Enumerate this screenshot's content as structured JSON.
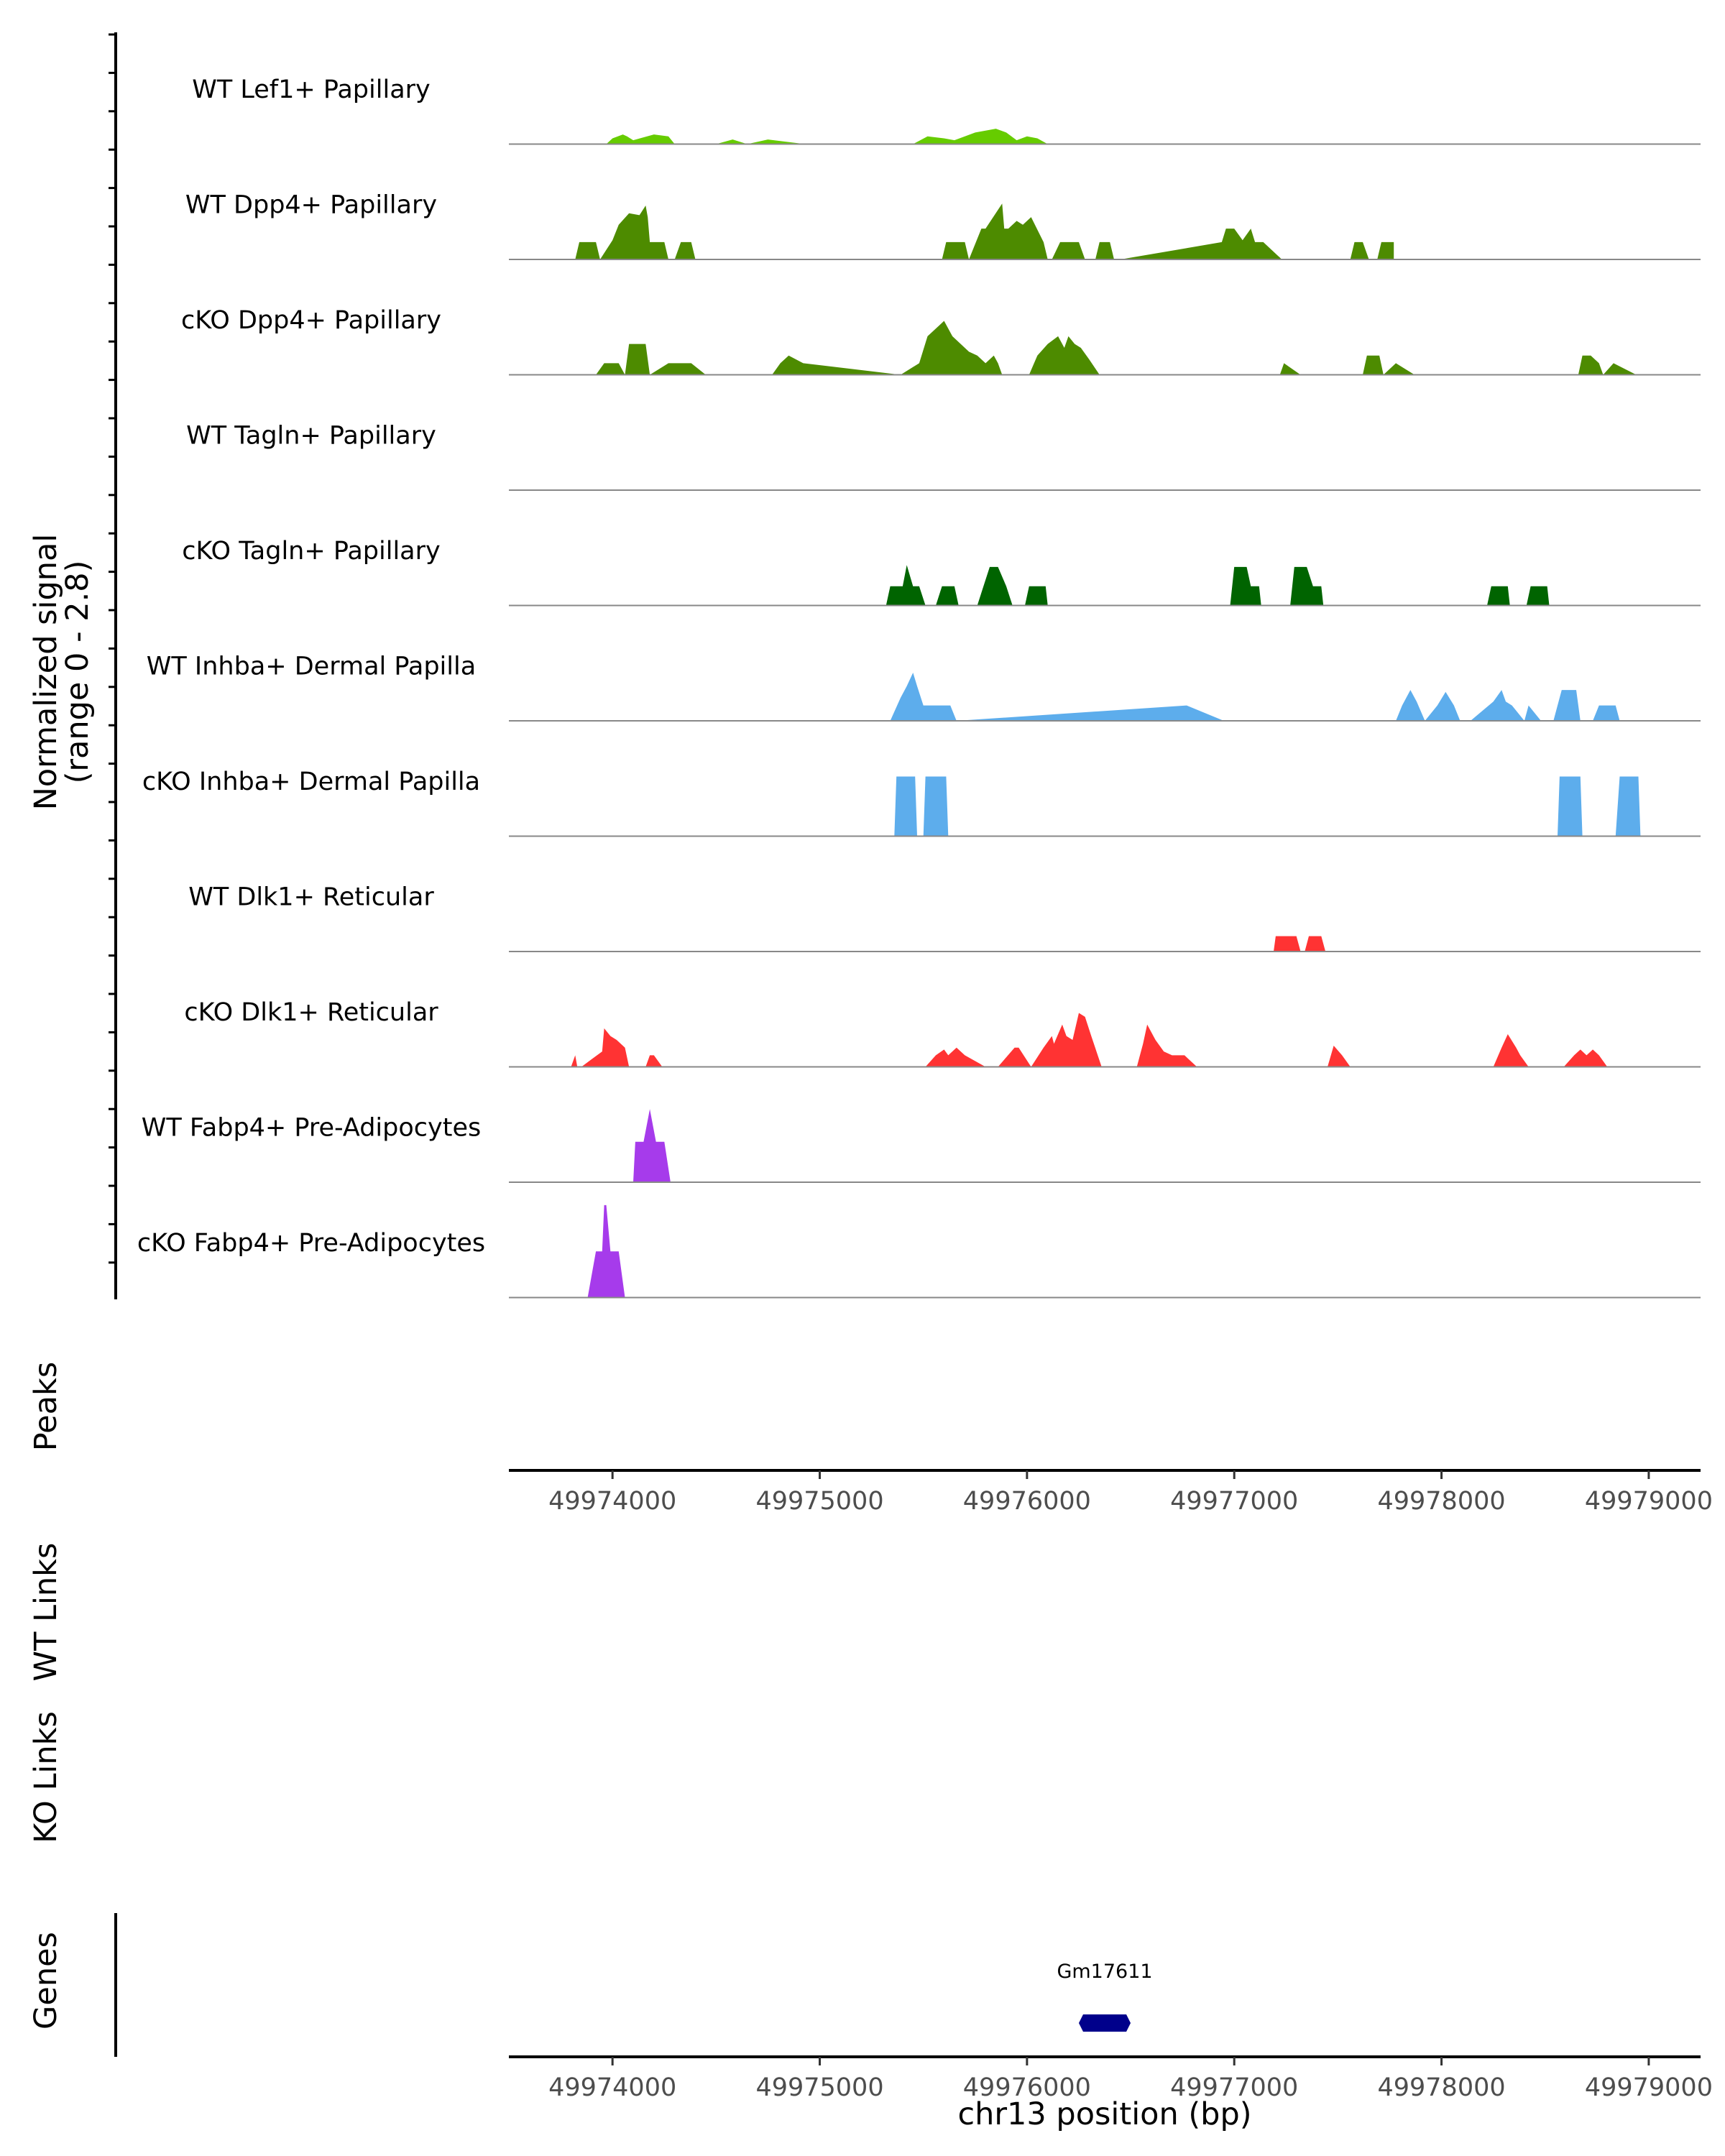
{
  "chart_data": {
    "type": "area",
    "title": "",
    "xlabel": "chr13 position (bp)",
    "ylabel_line1": "Normalized signal",
    "ylabel_line2": "(range 0 - 2.8)",
    "xlim": [
      49973500,
      49979250
    ],
    "ylim": [
      0,
      2.8
    ],
    "x_ticks": [
      49974000,
      49975000,
      49976000,
      49977000,
      49978000,
      49979000
    ],
    "x_tick_labels": [
      "49974000",
      "49975000",
      "49976000",
      "49977000",
      "49978000",
      "49979000"
    ],
    "section_labels": {
      "peaks": "Peaks",
      "wt_links": "WT Links",
      "ko_links": "KO Links",
      "genes": "Genes"
    },
    "tracks": [
      {
        "name": "WT Lef1+ Papillary",
        "color": "#66CC00",
        "x": [
          49973970,
          49974000,
          49974050,
          49974070,
          49974100,
          49974200,
          49974270,
          49974300,
          49974500,
          49974580,
          49974650,
          49974750,
          49974930,
          49975050,
          49975450,
          49975520,
          49975600,
          49975650,
          49975700,
          49975750,
          49975800,
          49975850,
          49975900,
          49975950,
          49976000,
          49976050,
          49976100
        ],
        "y": [
          0,
          0.15,
          0.25,
          0.2,
          0.1,
          0.25,
          0.2,
          0,
          0,
          0.12,
          0,
          0.12,
          0,
          0,
          0,
          0.2,
          0.15,
          0.1,
          0.2,
          0.3,
          0.35,
          0.4,
          0.3,
          0.1,
          0.2,
          0.15,
          0
        ]
      },
      {
        "name": "WT Dpp4+ Papillary",
        "color": "#4D8B00",
        "x": [
          49973820,
          49973840,
          49973920,
          49973940,
          49974000,
          49974030,
          49974080,
          49974130,
          49974160,
          49974170,
          49974180,
          49974250,
          49974270,
          49974300,
          49974330,
          49974380,
          49974400,
          49975590,
          49975610,
          49975700,
          49975720,
          49975780,
          49975800,
          49975880,
          49975890,
          49975910,
          49975950,
          49975980,
          49976020,
          49976080,
          49976100,
          49976120,
          49976160,
          49976250,
          49976280,
          49976330,
          49976350,
          49976400,
          49976420,
          49976450,
          49976940,
          49976960,
          49977000,
          49977040,
          49977080,
          49977100,
          49977140,
          49977230,
          49977560,
          49977580,
          49977620,
          49977650,
          49977690,
          49977710,
          49977770
        ],
        "y": [
          0,
          0.45,
          0.45,
          0,
          0.5,
          0.9,
          1.2,
          1.15,
          1.4,
          1.1,
          0.45,
          0.45,
          0,
          0,
          0.45,
          0.45,
          0,
          0,
          0.45,
          0.45,
          0,
          0.8,
          0.8,
          1.45,
          0.8,
          0.8,
          1.0,
          0.9,
          1.1,
          0.45,
          0,
          0,
          0.45,
          0.45,
          0,
          0,
          0.45,
          0.45,
          0,
          0,
          0.45,
          0.8,
          0.8,
          0.5,
          0.8,
          0.45,
          0.45,
          0,
          0,
          0.45,
          0.45,
          0,
          0,
          0.45,
          0.45
        ]
      },
      {
        "name": "cKO Dpp4+ Papillary",
        "color": "#4D8B00",
        "x": [
          49973920,
          49973960,
          49974030,
          49974060,
          49974080,
          49974160,
          49974180,
          49974270,
          49974290,
          49974330,
          49974380,
          49974450,
          49974770,
          49974810,
          49974850,
          49974920,
          49975390,
          49975480,
          49975520,
          49975580,
          49975600,
          49975640,
          49975680,
          49975720,
          49975760,
          49975800,
          49975840,
          49975860,
          49975880,
          49976010,
          49976050,
          49976100,
          49976150,
          49976180,
          49976200,
          49976230,
          49976260,
          49976300,
          49976350,
          49977220,
          49977240,
          49977320,
          49977620,
          49977640,
          49977700,
          49977720,
          49977780,
          49977870,
          49978660,
          49978680,
          49978720,
          49978760,
          49978780,
          49978830,
          49978940
        ],
        "y": [
          0,
          0.3,
          0.3,
          0,
          0.8,
          0.8,
          0,
          0.3,
          0.3,
          0.3,
          0.3,
          0,
          0,
          0.3,
          0.5,
          0.3,
          0,
          0.3,
          1.0,
          1.3,
          1.4,
          1.0,
          0.8,
          0.6,
          0.5,
          0.3,
          0.5,
          0.3,
          0,
          0,
          0.5,
          0.8,
          1.0,
          0.7,
          1.0,
          0.8,
          0.7,
          0.4,
          0,
          0,
          0.3,
          0,
          0,
          0.5,
          0.5,
          0,
          0.3,
          0,
          0,
          0.5,
          0.5,
          0.3,
          0,
          0.3,
          0
        ]
      },
      {
        "name": "WT Tagln+ Papillary",
        "color": "#2E7D00",
        "x": [],
        "y": []
      },
      {
        "name": "cKO Tagln+ Papillary",
        "color": "#006400",
        "x": [
          49975320,
          49975340,
          49975400,
          49975420,
          49975450,
          49975480,
          49975510,
          49975560,
          49975590,
          49975650,
          49975670,
          49975760,
          49975790,
          49975820,
          49975860,
          49975900,
          49975930,
          49975990,
          49976010,
          49976090,
          49976100,
          49976980,
          49977000,
          49977060,
          49977080,
          49977120,
          49977130,
          49977270,
          49977290,
          49977350,
          49977380,
          49977420,
          49977430,
          49978220,
          49978240,
          49978320,
          49978330,
          49978410,
          49978430,
          49978510,
          49978520
        ],
        "y": [
          0,
          0.5,
          0.5,
          1.05,
          0.5,
          0.5,
          0,
          0,
          0.5,
          0.5,
          0,
          0,
          0.5,
          1.0,
          1.0,
          0.5,
          0,
          0,
          0.5,
          0.5,
          0,
          0,
          1.0,
          1.0,
          0.5,
          0.5,
          0,
          0,
          1.0,
          1.0,
          0.5,
          0.5,
          0,
          0,
          0.5,
          0.5,
          0,
          0,
          0.5,
          0.5,
          0
        ]
      },
      {
        "name": "WT Inhba+ Dermal Papilla",
        "color": "#5DADEC",
        "x": [
          49975340,
          49975390,
          49975420,
          49975450,
          49975470,
          49975500,
          49975630,
          49975660,
          49976770,
          49976950,
          49977780,
          49977810,
          49977850,
          49977880,
          49977920,
          49977980,
          49978020,
          49978060,
          49978090,
          49978140,
          49978250,
          49978290,
          49978310,
          49978340,
          49978400,
          49978420,
          49978480,
          49978540,
          49978580,
          49978650,
          49978670,
          49978730,
          49978760,
          49978840,
          49978860
        ],
        "y": [
          0,
          0.6,
          0.9,
          1.25,
          0.9,
          0.4,
          0.4,
          0,
          0.4,
          0,
          0,
          0.4,
          0.8,
          0.5,
          0,
          0.4,
          0.75,
          0.4,
          0,
          0,
          0.5,
          0.8,
          0.5,
          0.4,
          0,
          0.4,
          0,
          0,
          0.8,
          0.8,
          0,
          0,
          0.4,
          0.4,
          0
        ]
      },
      {
        "name": "cKO Inhba+ Dermal Papilla",
        "color": "#5DADEC",
        "x": [
          49975360,
          49975370,
          49975460,
          49975470,
          49975500,
          49975510,
          49975610,
          49975620,
          49978560,
          49978570,
          49978670,
          49978680,
          49978840,
          49978860,
          49978950,
          49978960
        ],
        "y": [
          0,
          1.55,
          1.55,
          0,
          0,
          1.55,
          1.55,
          0,
          0,
          1.55,
          1.55,
          0,
          0,
          1.55,
          1.55,
          0
        ]
      },
      {
        "name": "WT Dlk1+ Reticular",
        "color": "#FF3333",
        "x": [
          49977190,
          49977200,
          49977300,
          49977320,
          49977340,
          49977360,
          49977420,
          49977440
        ],
        "y": [
          0,
          0.4,
          0.4,
          0,
          0,
          0.4,
          0.4,
          0
        ]
      },
      {
        "name": "cKO Dlk1+ Reticular",
        "color": "#FF3333",
        "x": [
          49973800,
          49973820,
          49973830,
          49973850,
          49973900,
          49973950,
          49973960,
          49973990,
          49974020,
          49974060,
          49974080,
          49974160,
          49974180,
          49974200,
          49974240,
          49975510,
          49975560,
          49975600,
          49975620,
          49975660,
          49975700,
          49975800,
          49975860,
          49975940,
          49975960,
          49976020,
          49976080,
          49976120,
          49976130,
          49976170,
          49976190,
          49976220,
          49976250,
          49976280,
          49976310,
          49976360,
          49976530,
          49976560,
          49976580,
          49976620,
          49976660,
          49976700,
          49976760,
          49976820,
          49977450,
          49977480,
          49977520,
          49977560,
          49978250,
          49978290,
          49978320,
          49978360,
          49978380,
          49978420,
          49978590,
          49978640,
          49978670,
          49978700,
          49978730,
          49978760,
          49978800
        ],
        "y": [
          0,
          0.3,
          0,
          0,
          0.2,
          0.4,
          1.0,
          0.8,
          0.7,
          0.5,
          0,
          0,
          0.3,
          0.3,
          0,
          0,
          0.3,
          0.45,
          0.3,
          0.5,
          0.3,
          0,
          0,
          0.5,
          0.5,
          0,
          0.5,
          0.8,
          0.6,
          1.1,
          0.8,
          0.7,
          1.4,
          1.3,
          0.8,
          0,
          0,
          0.6,
          1.1,
          0.7,
          0.4,
          0.3,
          0.3,
          0,
          0,
          0.55,
          0.3,
          0,
          0,
          0.5,
          0.85,
          0.5,
          0.3,
          0,
          0,
          0.3,
          0.45,
          0.3,
          0.45,
          0.3,
          0
        ]
      },
      {
        "name": "WT Fabp4+ Pre-Adipocytes",
        "color": "#A63BEB",
        "x": [
          49974100,
          49974110,
          49974150,
          49974180,
          49974210,
          49974240,
          49974250,
          49974280
        ],
        "y": [
          0,
          1.05,
          1.05,
          1.9,
          1.05,
          1.05,
          1.05,
          0
        ]
      },
      {
        "name": "cKO Fabp4+ Pre-Adipocytes",
        "color": "#A63BEB",
        "x": [
          49973880,
          49973920,
          49973950,
          49973960,
          49973970,
          49973990,
          49974030,
          49974060
        ],
        "y": [
          0,
          1.2,
          1.2,
          2.4,
          2.4,
          1.2,
          1.2,
          0
        ]
      }
    ],
    "genes": [
      {
        "name": "Gm17611",
        "start": 49976250,
        "end": 49976500,
        "color": "#00008B"
      }
    ]
  }
}
